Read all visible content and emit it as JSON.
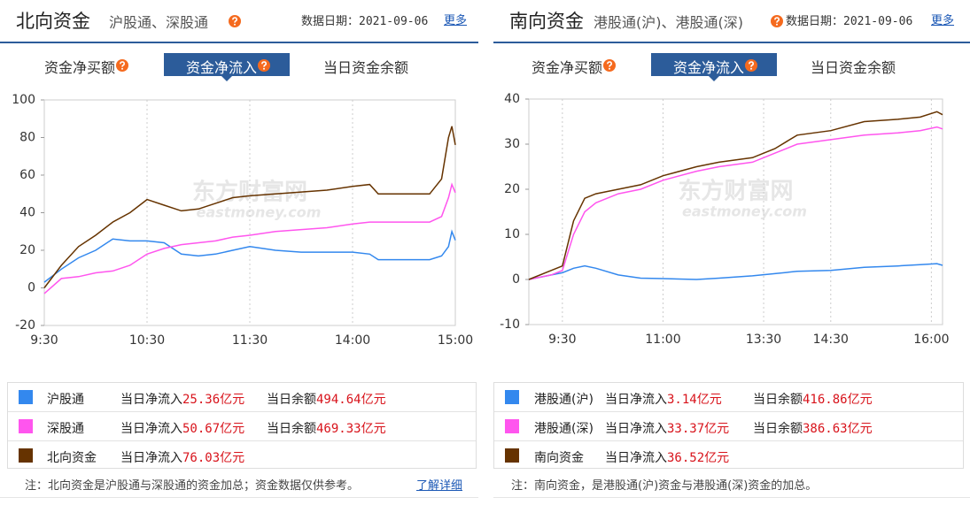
{
  "panels": [
    {
      "title": "北向资金",
      "subtitle": "沪股通、深股通",
      "date": "数据日期：2021-09-06",
      "more": "更多",
      "tabs": [
        "资金净买额",
        "资金净流入",
        "当日资金余额"
      ],
      "watermark": "东方财富网",
      "watermark_sub": "eastmoney.com",
      "legend": [
        {
          "inflow_label": "当日净流入",
          "inflow": "25.36亿元",
          "balance_label": "当日余额",
          "balance": "494.64亿元"
        },
        {
          "inflow_label": "当日净流入",
          "inflow": "50.67亿元",
          "balance_label": "当日余额",
          "balance": "469.33亿元"
        },
        {
          "inflow_label": "当日净流入",
          "inflow": "76.03亿元"
        }
      ],
      "note": "注：北向资金是沪股通与深股通的资金加总；资金数据仅供参考。",
      "note_link": "了解详细"
    },
    {
      "title": "南向资金",
      "subtitle": "港股通(沪)、港股通(深)",
      "date": "数据日期：2021-09-06",
      "more": "更多",
      "tabs": [
        "资金净买额",
        "资金净流入",
        "当日资金余额"
      ],
      "watermark": "东方财富网",
      "watermark_sub": "eastmoney.com",
      "legend": [
        {
          "inflow_label": "当日净流入",
          "inflow": "3.14亿元",
          "balance_label": "当日余额",
          "balance": "416.86亿元"
        },
        {
          "inflow_label": "当日净流入",
          "inflow": "33.37亿元",
          "balance_label": "当日余额",
          "balance": "386.63亿元"
        },
        {
          "inflow_label": "当日净流入",
          "inflow": "36.52亿元"
        }
      ],
      "note": "注：南向资金，是港股通(沪)资金与港股通(深)资金的加总。"
    }
  ],
  "chart_data": [
    {
      "type": "line",
      "grid": true,
      "x": [
        0,
        10,
        20,
        30,
        40,
        50,
        60,
        70,
        80,
        90,
        100,
        110,
        120,
        135,
        150,
        165,
        180,
        190,
        195,
        210,
        225,
        232,
        236,
        238,
        240
      ],
      "xlim": [
        0,
        240
      ],
      "xticks": [
        {
          "value": 0,
          "label": "9:30"
        },
        {
          "value": 60,
          "label": "10:30"
        },
        {
          "value": 120,
          "label": "11:30"
        },
        {
          "value": 180,
          "label": "14:00"
        },
        {
          "value": 240,
          "label": "15:00"
        }
      ],
      "ylim": [
        -20,
        100
      ],
      "yticks": [
        -20,
        0,
        20,
        40,
        60,
        80,
        100
      ],
      "series": [
        {
          "name": "沪股通",
          "color": "#3388ee",
          "values": [
            3,
            10,
            16,
            20,
            26,
            25,
            25,
            24,
            18,
            17,
            18,
            20,
            22,
            20,
            19,
            19,
            19,
            18,
            15,
            15,
            15,
            17,
            22,
            30,
            25.36
          ]
        },
        {
          "name": "深股通",
          "color": "#ff55ee",
          "values": [
            -3,
            5,
            6,
            8,
            9,
            12,
            18,
            21,
            23,
            24,
            25,
            27,
            28,
            30,
            31,
            32,
            34,
            35,
            35,
            35,
            35,
            38,
            48,
            55,
            50.67
          ]
        },
        {
          "name": "北向资金",
          "color": "#663300",
          "values": [
            0,
            12,
            22,
            28,
            35,
            40,
            47,
            44,
            41,
            42,
            45,
            48,
            49,
            50,
            51,
            52,
            54,
            55,
            50,
            50,
            50,
            58,
            80,
            86,
            76.03
          ]
        }
      ]
    },
    {
      "type": "line",
      "grid": true,
      "x": [
        0,
        20,
        30,
        40,
        50,
        60,
        80,
        100,
        120,
        150,
        170,
        200,
        220,
        240,
        270,
        300,
        330,
        350,
        365,
        370
      ],
      "xlim": [
        0,
        370
      ],
      "xticks": [
        {
          "value": 30,
          "label": "9:30"
        },
        {
          "value": 120,
          "label": "11:00"
        },
        {
          "value": 210,
          "label": "13:30"
        },
        {
          "value": 270,
          "label": "14:30"
        },
        {
          "value": 360,
          "label": "16:00"
        }
      ],
      "ylim": [
        -10,
        40
      ],
      "yticks": [
        -10,
        0,
        10,
        20,
        30,
        40
      ],
      "series": [
        {
          "name": "港股通(沪)",
          "color": "#3388ee",
          "values": [
            0,
            1,
            1.5,
            2.5,
            3,
            2.5,
            1,
            0.3,
            0.2,
            0,
            0.3,
            0.8,
            1.3,
            1.8,
            2,
            2.7,
            3,
            3.3,
            3.5,
            3.14
          ]
        },
        {
          "name": "港股通(深)",
          "color": "#ff55ee",
          "values": [
            0,
            1,
            2,
            10,
            15,
            17,
            19,
            20,
            22,
            24,
            25,
            26,
            28,
            30,
            31,
            32,
            32.5,
            33,
            33.8,
            33.37
          ]
        },
        {
          "name": "南向资金",
          "color": "#663300",
          "values": [
            0,
            2,
            3,
            13,
            18,
            19,
            20,
            21,
            23,
            25,
            26,
            27,
            29,
            32,
            33,
            35,
            35.5,
            36,
            37.2,
            36.52
          ]
        }
      ]
    }
  ]
}
